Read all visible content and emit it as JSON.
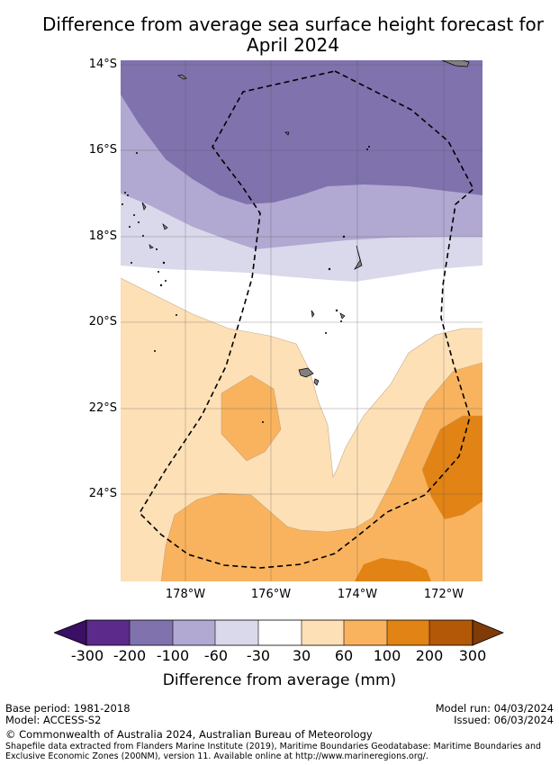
{
  "title_line1": "Difference from average sea surface height forecast for",
  "title_line2": "April 2024",
  "map": {
    "latitude_labels": [
      "14°S",
      "16°S",
      "18°S",
      "20°S",
      "22°S",
      "24°S"
    ],
    "longitude_labels": [
      "178°W",
      "176°W",
      "174°W",
      "172°W"
    ],
    "outline_style": "dashed",
    "land_color": "#808080"
  },
  "colorbar": {
    "ticks": [
      "-300",
      "-200",
      "-100",
      "-60",
      "-30",
      "30",
      "60",
      "100",
      "200",
      "300"
    ],
    "colors": [
      "#3b0f63",
      "#5b2a8a",
      "#7f72ad",
      "#b1a9d1",
      "#d9d9eb",
      "#ffffff",
      "#fde0b6",
      "#f9b35e",
      "#e28315",
      "#b35806",
      "#7f3b08"
    ],
    "label": "Difference from average (mm)"
  },
  "footer": {
    "base_period": "Base period: 1981-2018",
    "model": "Model: ACCESS-S2",
    "model_run": "Model run: 04/03/2024",
    "issued": "Issued: 06/03/2024",
    "copyright": "© Commonwealth of Australia 2024, Australian Bureau of Meteorology",
    "shapefile_line1": "Shapefile data extracted from Flanders Marine Institute (2019), Maritime Boundaries Geodatabase: Maritime Boundaries and",
    "shapefile_line2": "Exclusive Economic Zones (200NM), version 11. Available online at http://www.marineregions.org/."
  }
}
